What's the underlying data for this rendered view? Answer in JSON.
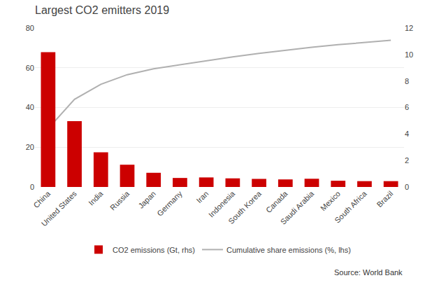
{
  "chart_data": {
    "type": "bar",
    "title": "Largest CO2 emitters 2019",
    "categories": [
      "China",
      "United States",
      "India",
      "Russia",
      "Japan",
      "Germany",
      "Iran",
      "Indonesia",
      "South Korea",
      "Canada",
      "Saudi Arabia",
      "Mexico",
      "South Africa",
      "Brazil"
    ],
    "series": [
      {
        "name": "CO2 emissions (Gt, rhs)",
        "type": "bar",
        "color": "#cc0000",
        "axis": "y2",
        "values": [
          10.17,
          4.97,
          2.62,
          1.68,
          1.07,
          0.68,
          0.72,
          0.65,
          0.61,
          0.57,
          0.62,
          0.47,
          0.44,
          0.44
        ]
      },
      {
        "name": "Cumulative share emissions (%, lhs)",
        "type": "line",
        "color": "#b0b0b0",
        "values": [
          29.4,
          44.1,
          51.7,
          56.5,
          59.5,
          61.5,
          63.6,
          65.5,
          67.2,
          68.8,
          70.3,
          71.6,
          72.7,
          73.8
        ]
      }
    ],
    "ylim": [
      0,
      80
    ],
    "yticks": [
      0,
      20,
      40,
      60,
      80
    ],
    "y2lim": [
      0,
      12
    ],
    "y2ticks": [
      0,
      2,
      4,
      6,
      8,
      10,
      12
    ],
    "grid": true,
    "legend": "bottom",
    "annotations": [
      "Source: World Bank"
    ]
  }
}
